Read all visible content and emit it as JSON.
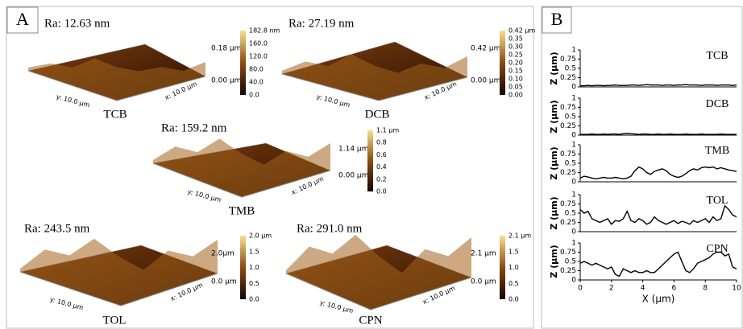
{
  "panel_a": {
    "label": "A",
    "images": [
      {
        "ra": "Ra: 12.63 nm",
        "name": "TCB",
        "z_top": "0.18 µm",
        "z_bottom": "0.00 µm",
        "y_axis": "y: 10.0 µm",
        "x_axis": "x: 10.0 µm",
        "colorbar_ticks": [
          "182.8 nm",
          "160.0",
          "120.0",
          "80.0",
          "40.0",
          "0.0"
        ]
      },
      {
        "ra": "Ra: 27.19 nm",
        "name": "DCB",
        "z_top": "0.42 µm",
        "z_bottom": "0.00 µm",
        "y_axis": "y: 10.0 µm",
        "x_axis": "x: 10.0 µm",
        "colorbar_ticks": [
          "0.42 µm",
          "0.35",
          "0.30",
          "0.25",
          "0.20",
          "0.15",
          "0.10",
          "0.05",
          "0.00"
        ]
      },
      {
        "ra": "Ra: 159.2 nm",
        "name": "TMB",
        "z_top": "1.14 µm",
        "z_bottom": "0.00 µm",
        "y_axis": "y: 10.0 µm",
        "x_axis": "x: 10.0 µm",
        "colorbar_ticks": [
          "1.1 µm",
          "0.8",
          "0.6",
          "0.4",
          "0.2",
          "0.0"
        ]
      },
      {
        "ra": "Ra: 243.5 nm",
        "name": "TOL",
        "z_top": "2.0µm",
        "z_bottom": "0.0 µm",
        "y_axis": "y: 10.0 µm",
        "x_axis": "x: 10.0 µm",
        "colorbar_ticks": [
          "2.0 µm",
          "1.5",
          "1.0",
          "0.5",
          "0.0"
        ]
      },
      {
        "ra": "Ra: 291.0 nm",
        "name": "CPN",
        "z_top": "2.1 µm",
        "z_bottom": "0.0 µm",
        "y_axis": "y: 10.0 µm",
        "x_axis": "x: 10.0 µm",
        "colorbar_ticks": [
          "2.1 µm",
          "1.5",
          "1.0",
          "0.5",
          "0.0"
        ]
      }
    ]
  },
  "panel_b": {
    "label": "B"
  },
  "chart_data": [
    {
      "type": "line",
      "annotation": "TCB",
      "ylabel": "Z (µm)",
      "color": "#000000",
      "ylim": [
        0,
        1
      ],
      "yticks": [
        0,
        0.25,
        0.5,
        0.75,
        1
      ],
      "xlim": [
        0,
        10
      ],
      "x": [
        0,
        0.25,
        0.5,
        0.75,
        1,
        1.25,
        1.5,
        1.75,
        2,
        2.25,
        2.5,
        2.75,
        3,
        3.25,
        3.5,
        3.75,
        4,
        4.25,
        4.5,
        4.75,
        5,
        5.25,
        5.5,
        5.75,
        6,
        6.25,
        6.5,
        6.75,
        7,
        7.25,
        7.5,
        7.75,
        8,
        8.25,
        8.5,
        8.75,
        9,
        9.25,
        9.5,
        9.75,
        10
      ],
      "values": [
        0.03,
        0.03,
        0.04,
        0.03,
        0.04,
        0.04,
        0.03,
        0.04,
        0.04,
        0.05,
        0.04,
        0.04,
        0.04,
        0.05,
        0.05,
        0.04,
        0.05,
        0.06,
        0.05,
        0.05,
        0.05,
        0.04,
        0.05,
        0.05,
        0.04,
        0.05,
        0.05,
        0.06,
        0.05,
        0.05,
        0.05,
        0.04,
        0.05,
        0.05,
        0.05,
        0.04,
        0.05,
        0.05,
        0.05,
        0.04,
        0.05
      ]
    },
    {
      "type": "line",
      "annotation": "DCB",
      "ylabel": "Z (µm)",
      "color": "#000000",
      "ylim": [
        0,
        1
      ],
      "yticks": [
        0,
        0.25,
        0.5,
        0.75,
        1
      ],
      "xlim": [
        0,
        10
      ],
      "x": [
        0,
        0.25,
        0.5,
        0.75,
        1,
        1.25,
        1.5,
        1.75,
        2,
        2.25,
        2.5,
        2.75,
        3,
        3.25,
        3.5,
        3.75,
        4,
        4.25,
        4.5,
        4.75,
        5,
        5.25,
        5.5,
        5.75,
        6,
        6.25,
        6.5,
        6.75,
        7,
        7.25,
        7.5,
        7.75,
        8,
        8.25,
        8.5,
        8.75,
        9,
        9.25,
        9.5,
        9.75,
        10
      ],
      "values": [
        0.02,
        0.02,
        0.02,
        0.03,
        0.02,
        0.02,
        0.03,
        0.02,
        0.03,
        0.03,
        0.02,
        0.04,
        0.05,
        0.04,
        0.03,
        0.02,
        0.03,
        0.03,
        0.02,
        0.02,
        0.03,
        0.02,
        0.02,
        0.03,
        0.02,
        0.02,
        0.02,
        0.03,
        0.02,
        0.02,
        0.02,
        0.03,
        0.02,
        0.02,
        0.02,
        0.02,
        0.03,
        0.02,
        0.02,
        0.02,
        0.02
      ]
    },
    {
      "type": "line",
      "annotation": "TMB",
      "ylabel": "Z (µm)",
      "color": "#000000",
      "ylim": [
        0,
        1
      ],
      "yticks": [
        0,
        0.25,
        0.5,
        0.75,
        1
      ],
      "xlim": [
        0,
        10
      ],
      "x": [
        0,
        0.25,
        0.5,
        0.75,
        1,
        1.25,
        1.5,
        1.75,
        2,
        2.25,
        2.5,
        2.75,
        3,
        3.25,
        3.5,
        3.75,
        4,
        4.25,
        4.5,
        4.75,
        5,
        5.25,
        5.5,
        5.75,
        6,
        6.25,
        6.5,
        6.75,
        7,
        7.25,
        7.5,
        7.75,
        8,
        8.25,
        8.5,
        8.75,
        9,
        9.25,
        9.5,
        9.75,
        10
      ],
      "values": [
        0.1,
        0.15,
        0.13,
        0.1,
        0.08,
        0.1,
        0.12,
        0.1,
        0.1,
        0.12,
        0.1,
        0.08,
        0.1,
        0.15,
        0.3,
        0.4,
        0.35,
        0.25,
        0.2,
        0.28,
        0.32,
        0.35,
        0.3,
        0.2,
        0.15,
        0.12,
        0.15,
        0.22,
        0.3,
        0.35,
        0.32,
        0.38,
        0.4,
        0.38,
        0.4,
        0.35,
        0.38,
        0.35,
        0.32,
        0.3,
        0.28
      ]
    },
    {
      "type": "line",
      "annotation": "TOL",
      "ylabel": "Z (µm)",
      "color": "#000000",
      "ylim": [
        0,
        1
      ],
      "yticks": [
        0,
        0.25,
        0.5,
        0.75,
        1
      ],
      "xlim": [
        0,
        10
      ],
      "x": [
        0,
        0.25,
        0.5,
        0.75,
        1,
        1.25,
        1.5,
        1.75,
        2,
        2.25,
        2.5,
        2.75,
        3,
        3.25,
        3.5,
        3.75,
        4,
        4.25,
        4.5,
        4.75,
        5,
        5.25,
        5.5,
        5.75,
        6,
        6.25,
        6.5,
        6.75,
        7,
        7.25,
        7.5,
        7.75,
        8,
        8.25,
        8.5,
        8.75,
        9,
        9.25,
        9.5,
        9.75,
        10
      ],
      "values": [
        0.6,
        0.5,
        0.55,
        0.35,
        0.3,
        0.25,
        0.3,
        0.35,
        0.2,
        0.3,
        0.28,
        0.35,
        0.55,
        0.3,
        0.25,
        0.35,
        0.3,
        0.2,
        0.25,
        0.4,
        0.3,
        0.25,
        0.2,
        0.25,
        0.3,
        0.22,
        0.28,
        0.25,
        0.2,
        0.3,
        0.25,
        0.3,
        0.35,
        0.25,
        0.4,
        0.3,
        0.35,
        0.7,
        0.6,
        0.45,
        0.4
      ]
    },
    {
      "type": "line",
      "annotation": "CPN",
      "ylabel": "Z (µm)",
      "xlabel": "X (µm)",
      "color": "#000000",
      "ylim": [
        0,
        1
      ],
      "yticks": [
        0,
        0.25,
        0.5,
        0.75,
        1
      ],
      "xlim": [
        0,
        10
      ],
      "xticks": [
        0,
        2,
        4,
        6,
        8,
        10
      ],
      "x": [
        0,
        0.25,
        0.5,
        0.75,
        1,
        1.25,
        1.5,
        1.75,
        2,
        2.25,
        2.5,
        2.75,
        3,
        3.25,
        3.5,
        3.75,
        4,
        4.25,
        4.5,
        4.75,
        5,
        5.25,
        5.5,
        5.75,
        6,
        6.25,
        6.5,
        6.75,
        7,
        7.25,
        7.5,
        7.75,
        8,
        8.25,
        8.5,
        8.75,
        9,
        9.25,
        9.5,
        9.75,
        10
      ],
      "values": [
        0.45,
        0.5,
        0.45,
        0.4,
        0.45,
        0.4,
        0.35,
        0.3,
        0.35,
        0.15,
        0.1,
        0.3,
        0.25,
        0.2,
        0.25,
        0.2,
        0.2,
        0.25,
        0.2,
        0.2,
        0.3,
        0.4,
        0.5,
        0.6,
        0.7,
        0.75,
        0.5,
        0.25,
        0.2,
        0.3,
        0.45,
        0.5,
        0.55,
        0.6,
        0.7,
        0.75,
        0.75,
        0.65,
        0.7,
        0.35,
        0.3
      ]
    }
  ]
}
